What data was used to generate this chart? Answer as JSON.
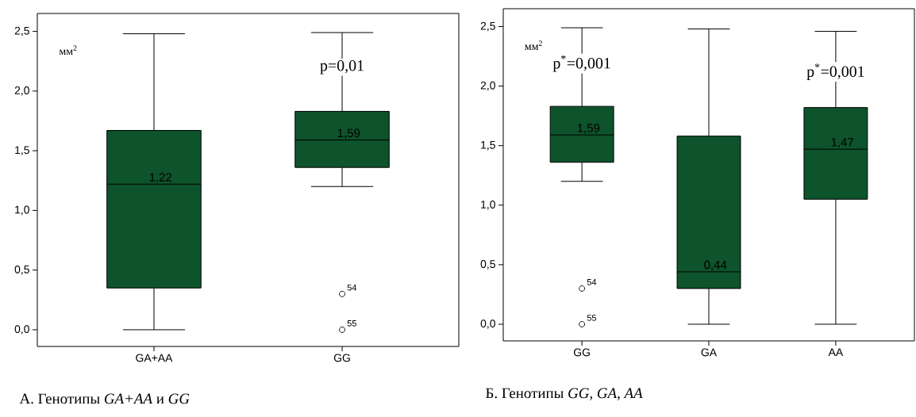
{
  "chart_data": [
    {
      "type": "box",
      "title": "А. Генотипы *GA+AA* и *GG*",
      "categories": [
        "GA+AA",
        "GG"
      ],
      "color": "#0d532b",
      "marker": "circle",
      "boxes": [
        {
          "low": 0,
          "q1": 0.35,
          "median": 1.22,
          "q3": 1.67,
          "high": 2.48
        },
        {
          "low": 1.2,
          "q1": 1.36,
          "median": 1.59,
          "q3": 1.83,
          "high": 2.49
        }
      ],
      "series": [
        {
          "type": "scatter",
          "color": "#000000",
          "x": [
            "GG",
            "GG"
          ],
          "values": [
            0.3,
            0
          ]
        }
      ],
      "ylim": [
        -0.14,
        2.65
      ],
      "yticks": [
        {
          "value": 0,
          "label": "0,0"
        },
        {
          "value": 0.5,
          "label": "0,5"
        },
        {
          "value": 1,
          "label": "1,0"
        },
        {
          "value": 1.5,
          "label": "1,5"
        },
        {
          "value": 2,
          "label": "2,0"
        },
        {
          "value": 2.5,
          "label": "2,5"
        }
      ],
      "annotations": [
        "мм$^{2}$",
        {
          "text": "1,22",
          "x": "GA+AA",
          "y": 1.22
        },
        {
          "text": "1,59",
          "x": "GG",
          "y": 1.59
        },
        {
          "text": "p=0,01",
          "x": "GG",
          "y": 2.2
        },
        {
          "text": "54",
          "x": "GG",
          "y": 0.3
        },
        {
          "text": "55",
          "x": "GG",
          "y": 0
        }
      ]
    },
    {
      "type": "box",
      "title": "Б. Генотипы *GG, GA, AA*",
      "categories": [
        "GG",
        "GA",
        "AA"
      ],
      "color": "#0d532b",
      "marker": "circle",
      "boxes": [
        {
          "low": 1.2,
          "q1": 1.36,
          "median": 1.59,
          "q3": 1.83,
          "high": 2.49
        },
        {
          "low": 0,
          "q1": 0.3,
          "median": 0.44,
          "q3": 1.58,
          "high": 2.48
        },
        {
          "low": 0,
          "q1": 1.05,
          "median": 1.47,
          "q3": 1.82,
          "high": 2.46
        }
      ],
      "series": [
        {
          "type": "scatter",
          "color": "#000000",
          "x": [
            "GG",
            "GG"
          ],
          "values": [
            0.3,
            0
          ]
        }
      ],
      "ylim": [
        -0.14,
        2.65
      ],
      "yticks": [
        {
          "value": 0,
          "label": "0,0"
        },
        {
          "value": 0.5,
          "label": "0,5"
        },
        {
          "value": 1,
          "label": "1,0"
        },
        {
          "value": 1.5,
          "label": "1,5"
        },
        {
          "value": 2,
          "label": "2,0"
        },
        {
          "value": 2.5,
          "label": "2,5"
        }
      ],
      "annotations": [
        "мм$^{2}$",
        {
          "text": "1,59",
          "x": "GG",
          "y": 1.59
        },
        {
          "text": "p$^{*}$=0,001",
          "x": "GG",
          "y": 2.19
        },
        {
          "text": "54",
          "x": "GG",
          "y": 0.3
        },
        {
          "text": "55",
          "x": "GG",
          "y": 0
        },
        {
          "text": "0,44",
          "x": "GA",
          "y": 0.44
        },
        {
          "text": "1,47",
          "x": "AA",
          "y": 1.47
        },
        {
          "text": "p$^{*}$=0,001",
          "x": "AA",
          "y": 2.12
        }
      ]
    }
  ]
}
